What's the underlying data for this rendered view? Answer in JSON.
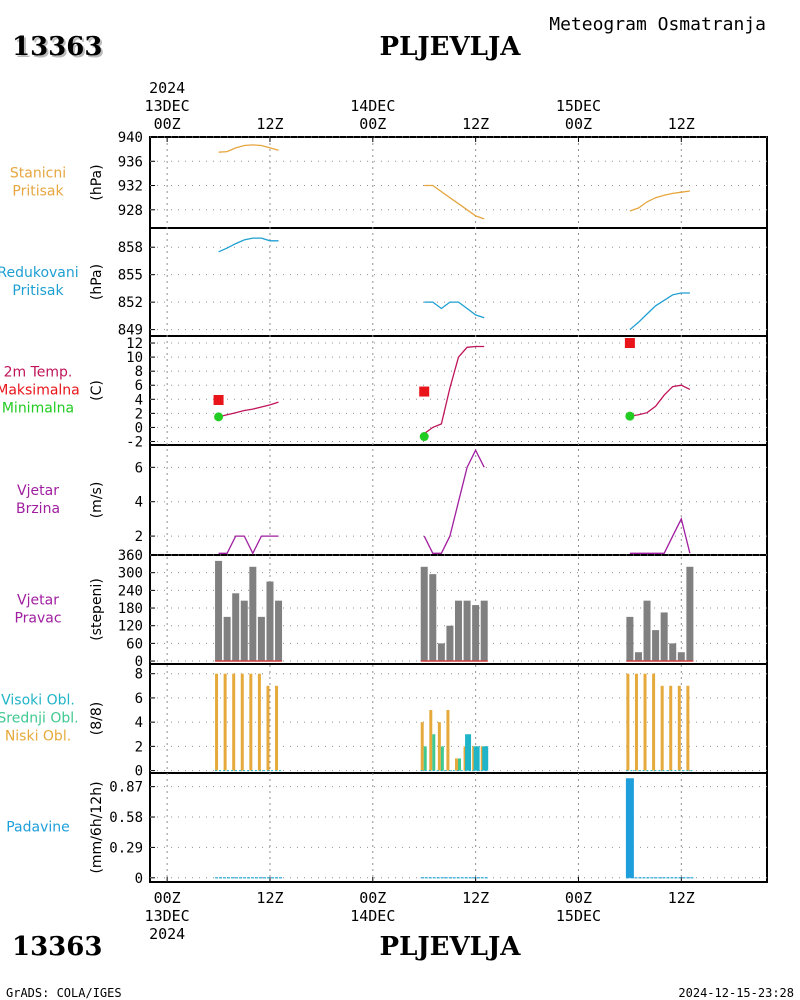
{
  "header": {
    "station_id": "13363",
    "station_name": "PLJEVLJA",
    "product_title": "Meteogram Osmatranja"
  },
  "footer": {
    "credit": "GrADS: COLA/IGES",
    "timestamp": "2024-12-15-23:28"
  },
  "time_axis": {
    "range_hours": [
      -2,
      70
    ],
    "major_ticks": [
      {
        "h": 0,
        "hour": "00Z",
        "day": "13DEC",
        "year": "2024"
      },
      {
        "h": 12,
        "hour": "12Z"
      },
      {
        "h": 24,
        "hour": "00Z",
        "day": "14DEC"
      },
      {
        "h": 36,
        "hour": "12Z"
      },
      {
        "h": 48,
        "hour": "00Z",
        "day": "15DEC"
      },
      {
        "h": 60,
        "hour": "12Z"
      }
    ]
  },
  "colors": {
    "station_pressure": "#e6a640",
    "reduced_pressure": "#1e9fd2",
    "temperature": "#c0145a",
    "max_temp": "#e8141a",
    "min_temp": "#22cc22",
    "wind": "#a01ea0",
    "direction_bar": "#808080",
    "direction_base": "#d04040",
    "high_cloud": "#20b4c8",
    "mid_cloud": "#40c890",
    "low_cloud": "#e6aa3c",
    "precip": "#1e9fdc",
    "axis": "#000000",
    "grid": "#909090"
  },
  "chart_data": [
    {
      "id": "station_pressure",
      "type": "line",
      "labels": [
        "Stanicni",
        "Pritisak"
      ],
      "unit": "(hPa)",
      "ylim": [
        925,
        940
      ],
      "yticks": [
        940,
        936,
        932,
        928
      ],
      "series": [
        {
          "x": [
            6,
            7,
            8,
            9,
            10,
            11,
            12,
            13
          ],
          "y": [
            937.5,
            937.6,
            938.2,
            938.6,
            938.7,
            938.6,
            938.2,
            937.8
          ]
        },
        {
          "x": [
            30,
            31,
            32,
            33,
            34,
            35,
            36,
            37
          ],
          "y": [
            932.0,
            932.0,
            931.0,
            930.0,
            929.0,
            928.0,
            927.0,
            926.5
          ]
        },
        {
          "x": [
            54,
            55,
            56,
            57,
            58,
            59,
            60,
            61
          ],
          "y": [
            927.8,
            928.3,
            929.3,
            930.0,
            930.4,
            930.7,
            930.9,
            931.1
          ]
        }
      ]
    },
    {
      "id": "reduced_pressure",
      "type": "line",
      "labels": [
        "Redukovani",
        "Pritisak"
      ],
      "unit": "(hPa)",
      "ylim": [
        848.3,
        860.1
      ],
      "yticks": [
        858,
        855,
        852,
        849
      ],
      "series": [
        {
          "x": [
            6,
            7,
            8,
            9,
            10,
            11,
            12,
            13
          ],
          "y": [
            857.5,
            857.9,
            858.4,
            858.8,
            859.0,
            859.0,
            858.7,
            858.7
          ]
        },
        {
          "x": [
            30,
            31,
            32,
            33,
            34,
            35,
            36,
            37
          ],
          "y": [
            852.0,
            852.0,
            851.3,
            852.0,
            852.0,
            851.3,
            850.6,
            850.3
          ]
        },
        {
          "x": [
            54,
            55,
            56,
            57,
            58,
            59,
            60,
            61
          ],
          "y": [
            849.0,
            849.8,
            850.7,
            851.6,
            852.2,
            852.8,
            853.0,
            853.0
          ]
        }
      ]
    },
    {
      "id": "temperature",
      "type": "line",
      "labels": [
        "2m Temp.",
        "Maksimalna",
        "Minimalna"
      ],
      "unit": "(C)",
      "ylim": [
        -2.5,
        13
      ],
      "yticks": [
        12,
        10,
        8,
        6,
        4,
        2,
        0,
        -2
      ],
      "series": [
        {
          "name": "2m Temp.",
          "x": [
            6,
            7,
            8,
            9,
            10,
            11,
            12,
            13
          ],
          "y": [
            1.5,
            1.8,
            2.1,
            2.4,
            2.6,
            2.9,
            3.2,
            3.6
          ]
        },
        {
          "name": "2m Temp.",
          "x": [
            30,
            31,
            32,
            33,
            34,
            35,
            36,
            37
          ],
          "y": [
            -0.9,
            0.0,
            0.5,
            5.6,
            10.0,
            11.4,
            11.5,
            11.5
          ]
        },
        {
          "name": "2m Temp.",
          "x": [
            54,
            55,
            56,
            57,
            58,
            59,
            60,
            61
          ],
          "y": [
            1.6,
            1.8,
            2.1,
            3.0,
            4.6,
            5.8,
            6.0,
            5.4
          ]
        }
      ],
      "max_points": [
        {
          "x": 6,
          "y": 3.9
        },
        {
          "x": 30,
          "y": 5.1
        },
        {
          "x": 54,
          "y": 12.0
        }
      ],
      "min_points": [
        {
          "x": 6,
          "y": 1.5
        },
        {
          "x": 30,
          "y": -1.3
        },
        {
          "x": 54,
          "y": 1.6
        }
      ]
    },
    {
      "id": "wind_speed",
      "type": "line",
      "labels": [
        "Vjetar",
        "Brzina"
      ],
      "unit": "(m/s)",
      "ylim": [
        0.9,
        7.3
      ],
      "yticks": [
        6,
        4,
        2
      ],
      "series": [
        {
          "x": [
            6,
            7,
            8,
            9,
            10,
            11,
            12,
            13
          ],
          "y": [
            1.0,
            1.0,
            2.0,
            2.0,
            1.0,
            2.0,
            2.0,
            2.0
          ]
        },
        {
          "x": [
            30,
            31,
            32,
            33,
            34,
            35,
            36,
            37
          ],
          "y": [
            2.0,
            1.0,
            1.0,
            2.0,
            4.0,
            6.0,
            7.0,
            6.0
          ]
        },
        {
          "x": [
            54,
            55,
            56,
            57,
            58,
            59,
            60,
            61
          ],
          "y": [
            1.0,
            1.0,
            1.0,
            1.0,
            1.0,
            2.0,
            3.0,
            1.0
          ]
        }
      ]
    },
    {
      "id": "wind_direction",
      "type": "bar",
      "labels": [
        "Vjetar",
        "Pravac"
      ],
      "unit": "(stepeni)",
      "ylim": [
        -10,
        360
      ],
      "yticks": [
        360,
        300,
        240,
        180,
        120,
        60,
        0
      ],
      "x": [
        6,
        7,
        8,
        9,
        10,
        11,
        12,
        13,
        30,
        31,
        32,
        33,
        34,
        35,
        36,
        37,
        54,
        55,
        56,
        57,
        58,
        59,
        60,
        61
      ],
      "values": [
        340,
        150,
        230,
        205,
        320,
        150,
        270,
        205,
        320,
        295,
        60,
        120,
        205,
        205,
        190,
        205,
        150,
        30,
        205,
        105,
        165,
        60,
        30,
        320
      ]
    },
    {
      "id": "clouds",
      "type": "bar",
      "labels": [
        "Visoki Obl.",
        "Srednji Obl.",
        "Niski Obl."
      ],
      "unit": "(8/8)",
      "ylim": [
        -0.2,
        8.8
      ],
      "yticks": [
        8,
        6,
        4,
        2,
        0
      ],
      "x": [
        6,
        7,
        8,
        9,
        10,
        11,
        12,
        13,
        30,
        31,
        32,
        33,
        34,
        35,
        36,
        37,
        54,
        55,
        56,
        57,
        58,
        59,
        60,
        61
      ],
      "series": [
        {
          "name": "Niski Obl.",
          "values": [
            8,
            8,
            8,
            8,
            8,
            8,
            7,
            7,
            4,
            5,
            4,
            5,
            1,
            2,
            2,
            2,
            8,
            8,
            8,
            8,
            7,
            7,
            7,
            7
          ]
        },
        {
          "name": "Srednji Obl.",
          "values": [
            0,
            0,
            0,
            0,
            0,
            0,
            0,
            0,
            2,
            3,
            2,
            0,
            1,
            1,
            2,
            2,
            0,
            0,
            0,
            0,
            0,
            0,
            0,
            0
          ]
        },
        {
          "name": "Visoki Obl.",
          "values": [
            0,
            0,
            0,
            0,
            0,
            0,
            0,
            0,
            0,
            0,
            0,
            0,
            0,
            3,
            2,
            2,
            0,
            0,
            0,
            0,
            0,
            0,
            0,
            0
          ]
        }
      ]
    },
    {
      "id": "precipitation",
      "type": "bar",
      "labels": [
        "Padavine"
      ],
      "unit": "(mm/6h/12h)",
      "ylim": [
        -0.04,
        1.0
      ],
      "yticks": [
        0.87,
        0.58,
        0.29,
        0
      ],
      "x": [
        6,
        7,
        8,
        9,
        10,
        11,
        12,
        13,
        30,
        31,
        32,
        33,
        34,
        35,
        36,
        37,
        54,
        55,
        56,
        57,
        58,
        59,
        60,
        61
      ],
      "values": [
        0,
        0,
        0,
        0,
        0,
        0,
        0,
        0,
        0,
        0,
        0,
        0,
        0,
        0,
        0,
        0,
        0.95,
        0,
        0,
        0,
        0,
        0,
        0,
        0
      ]
    }
  ]
}
